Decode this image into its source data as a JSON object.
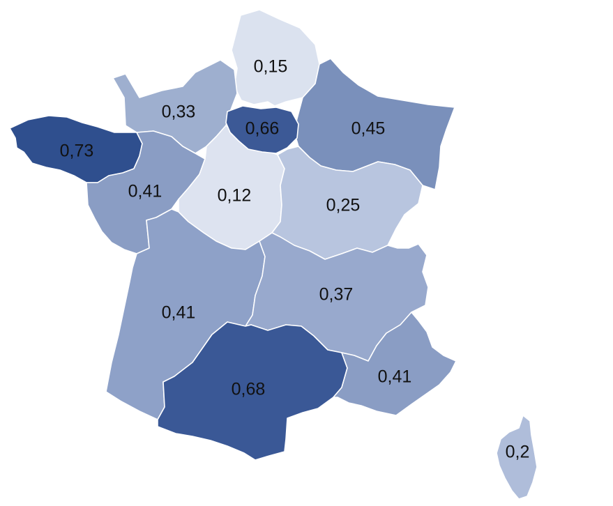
{
  "map": {
    "regions": [
      {
        "id": "hauts-de-france",
        "label": "0,15",
        "color": "#dbe2ef"
      },
      {
        "id": "normandie",
        "label": "0,33",
        "color": "#9eafcf"
      },
      {
        "id": "ile-de-france",
        "label": "0,66",
        "color": "#3c5996"
      },
      {
        "id": "grand-est",
        "label": "0,45",
        "color": "#7a90bb"
      },
      {
        "id": "bretagne",
        "label": "0,73",
        "color": "#2f4f8e"
      },
      {
        "id": "pays-de-la-loire",
        "label": "0,41",
        "color": "#8a9dc4"
      },
      {
        "id": "centre-val-de-loire",
        "label": "0,12",
        "color": "#dde3f0"
      },
      {
        "id": "bourgogne-franche-comte",
        "label": "0,25",
        "color": "#b8c5df"
      },
      {
        "id": "nouvelle-aquitaine",
        "label": "0,41",
        "color": "#8ea1c8"
      },
      {
        "id": "auvergne-rhone-alpes",
        "label": "0,37",
        "color": "#98a9cd"
      },
      {
        "id": "occitanie",
        "label": "0,68",
        "color": "#3a5896"
      },
      {
        "id": "provence-alpes-cote-d-azur",
        "label": "0,41",
        "color": "#8a9dc4"
      },
      {
        "id": "corse",
        "label": "0,2",
        "color": "#afbdda"
      }
    ]
  }
}
